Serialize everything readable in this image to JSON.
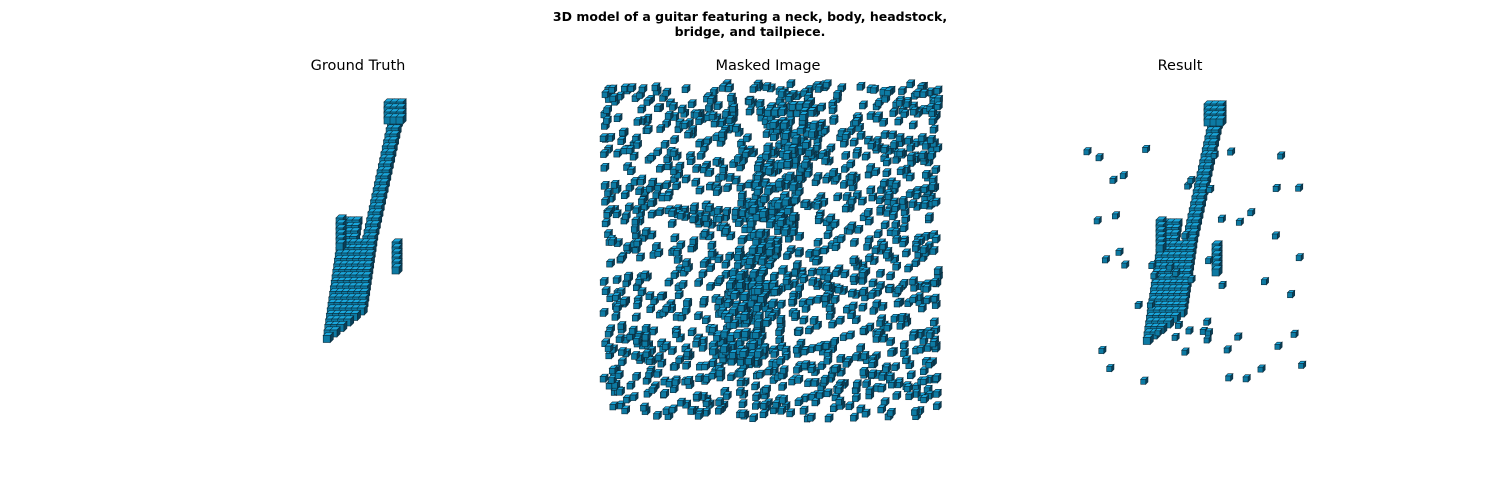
{
  "figure": {
    "title_line1": "3D model of a guitar featuring a neck, body, headstock,",
    "title_line2": "bridge, and tailpiece."
  },
  "panels": {
    "ground_truth": {
      "title": "Ground Truth"
    },
    "masked": {
      "title": "Masked Image"
    },
    "result": {
      "title": "Result"
    }
  },
  "colors": {
    "voxel_light": "#1aa7dc",
    "voxel_mid": "#0d7aa3",
    "voxel_dark": "#0a3f57",
    "voxel_edge": "#0b2d3d"
  }
}
